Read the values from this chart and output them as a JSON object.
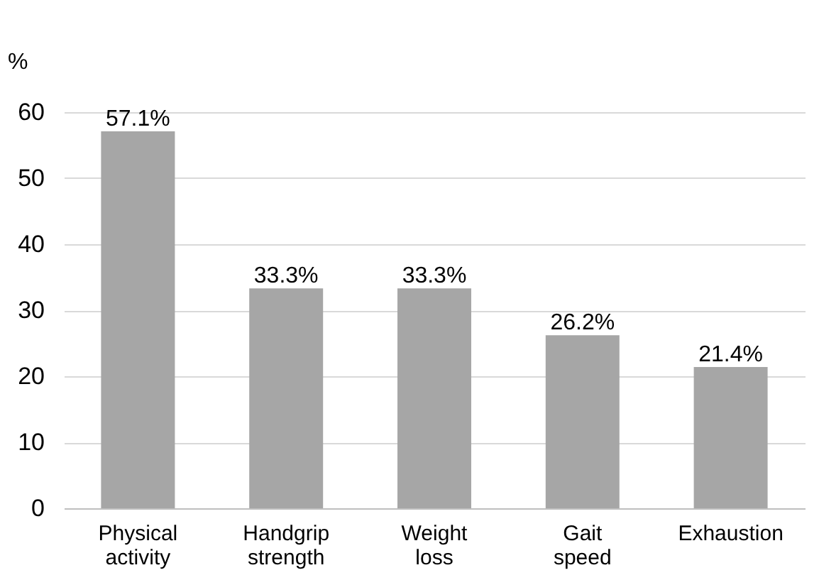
{
  "chart_data": {
    "type": "bar",
    "ylabel": "%",
    "categories": [
      "Physical activity",
      "Handgrip strength",
      "Weight loss",
      "Gait speed",
      "Exhaustion"
    ],
    "values": [
      57.1,
      33.3,
      33.3,
      26.2,
      21.4
    ],
    "value_labels": [
      "57.1%",
      "33.3%",
      "33.3%",
      "26.2%",
      "21.4%"
    ],
    "color": "#a6a6a6",
    "ylim": [
      0,
      60
    ],
    "yticks": [
      0,
      10,
      20,
      30,
      40,
      50,
      60
    ],
    "grid": "y"
  }
}
